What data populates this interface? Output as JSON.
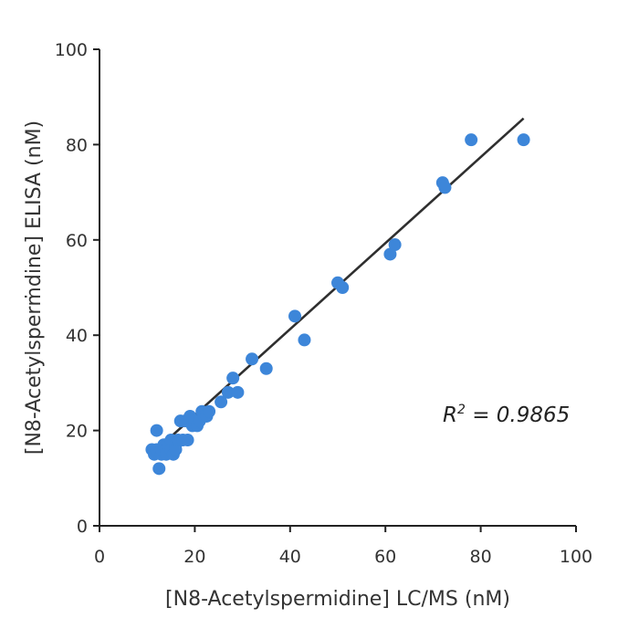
{
  "chart_data": {
    "type": "scatter",
    "title": "",
    "xlabel": "[N8-Acetylspermidine] LC/MS (nM)",
    "ylabel": "[N8-Acetylsperṁdine] ELISA (nM)",
    "xlim": [
      0,
      100
    ],
    "ylim": [
      0,
      100
    ],
    "xticks": [
      "0",
      "20",
      "40",
      "60",
      "80",
      "100"
    ],
    "yticks": [
      "0",
      "20",
      "40",
      "60",
      "80",
      "100"
    ],
    "grid": false,
    "annotation": {
      "r_symbol": "R",
      "r_exp": "2",
      "r_value": " = 0.9865"
    },
    "point_color": "#3d86d9",
    "line_color": "#2f2f2f",
    "fit_line": {
      "x": [
        12,
        89
      ],
      "y": [
        16,
        85.5
      ]
    },
    "points": [
      {
        "x": 11,
        "y": 16
      },
      {
        "x": 11.5,
        "y": 15
      },
      {
        "x": 12,
        "y": 20
      },
      {
        "x": 12,
        "y": 16
      },
      {
        "x": 12.5,
        "y": 12
      },
      {
        "x": 13,
        "y": 15
      },
      {
        "x": 13,
        "y": 16
      },
      {
        "x": 13.5,
        "y": 17
      },
      {
        "x": 14,
        "y": 16
      },
      {
        "x": 14,
        "y": 15
      },
      {
        "x": 14.5,
        "y": 17
      },
      {
        "x": 15,
        "y": 18
      },
      {
        "x": 15,
        "y": 16
      },
      {
        "x": 15.5,
        "y": 15
      },
      {
        "x": 16,
        "y": 17
      },
      {
        "x": 16,
        "y": 16
      },
      {
        "x": 16.5,
        "y": 18
      },
      {
        "x": 17,
        "y": 22
      },
      {
        "x": 17.5,
        "y": 18
      },
      {
        "x": 18,
        "y": 22
      },
      {
        "x": 18.5,
        "y": 18
      },
      {
        "x": 19,
        "y": 23
      },
      {
        "x": 19.5,
        "y": 21
      },
      {
        "x": 20,
        "y": 22
      },
      {
        "x": 20.5,
        "y": 21
      },
      {
        "x": 21,
        "y": 22
      },
      {
        "x": 21.5,
        "y": 24
      },
      {
        "x": 22,
        "y": 23
      },
      {
        "x": 22.5,
        "y": 23
      },
      {
        "x": 23,
        "y": 24
      },
      {
        "x": 25.5,
        "y": 26
      },
      {
        "x": 27,
        "y": 28
      },
      {
        "x": 28,
        "y": 31
      },
      {
        "x": 29,
        "y": 28
      },
      {
        "x": 32,
        "y": 35
      },
      {
        "x": 35,
        "y": 33
      },
      {
        "x": 41,
        "y": 44
      },
      {
        "x": 43,
        "y": 39
      },
      {
        "x": 50,
        "y": 51
      },
      {
        "x": 51,
        "y": 50
      },
      {
        "x": 61,
        "y": 57
      },
      {
        "x": 62,
        "y": 59
      },
      {
        "x": 72,
        "y": 72
      },
      {
        "x": 72.5,
        "y": 71
      },
      {
        "x": 78,
        "y": 81
      },
      {
        "x": 89,
        "y": 81
      }
    ]
  }
}
